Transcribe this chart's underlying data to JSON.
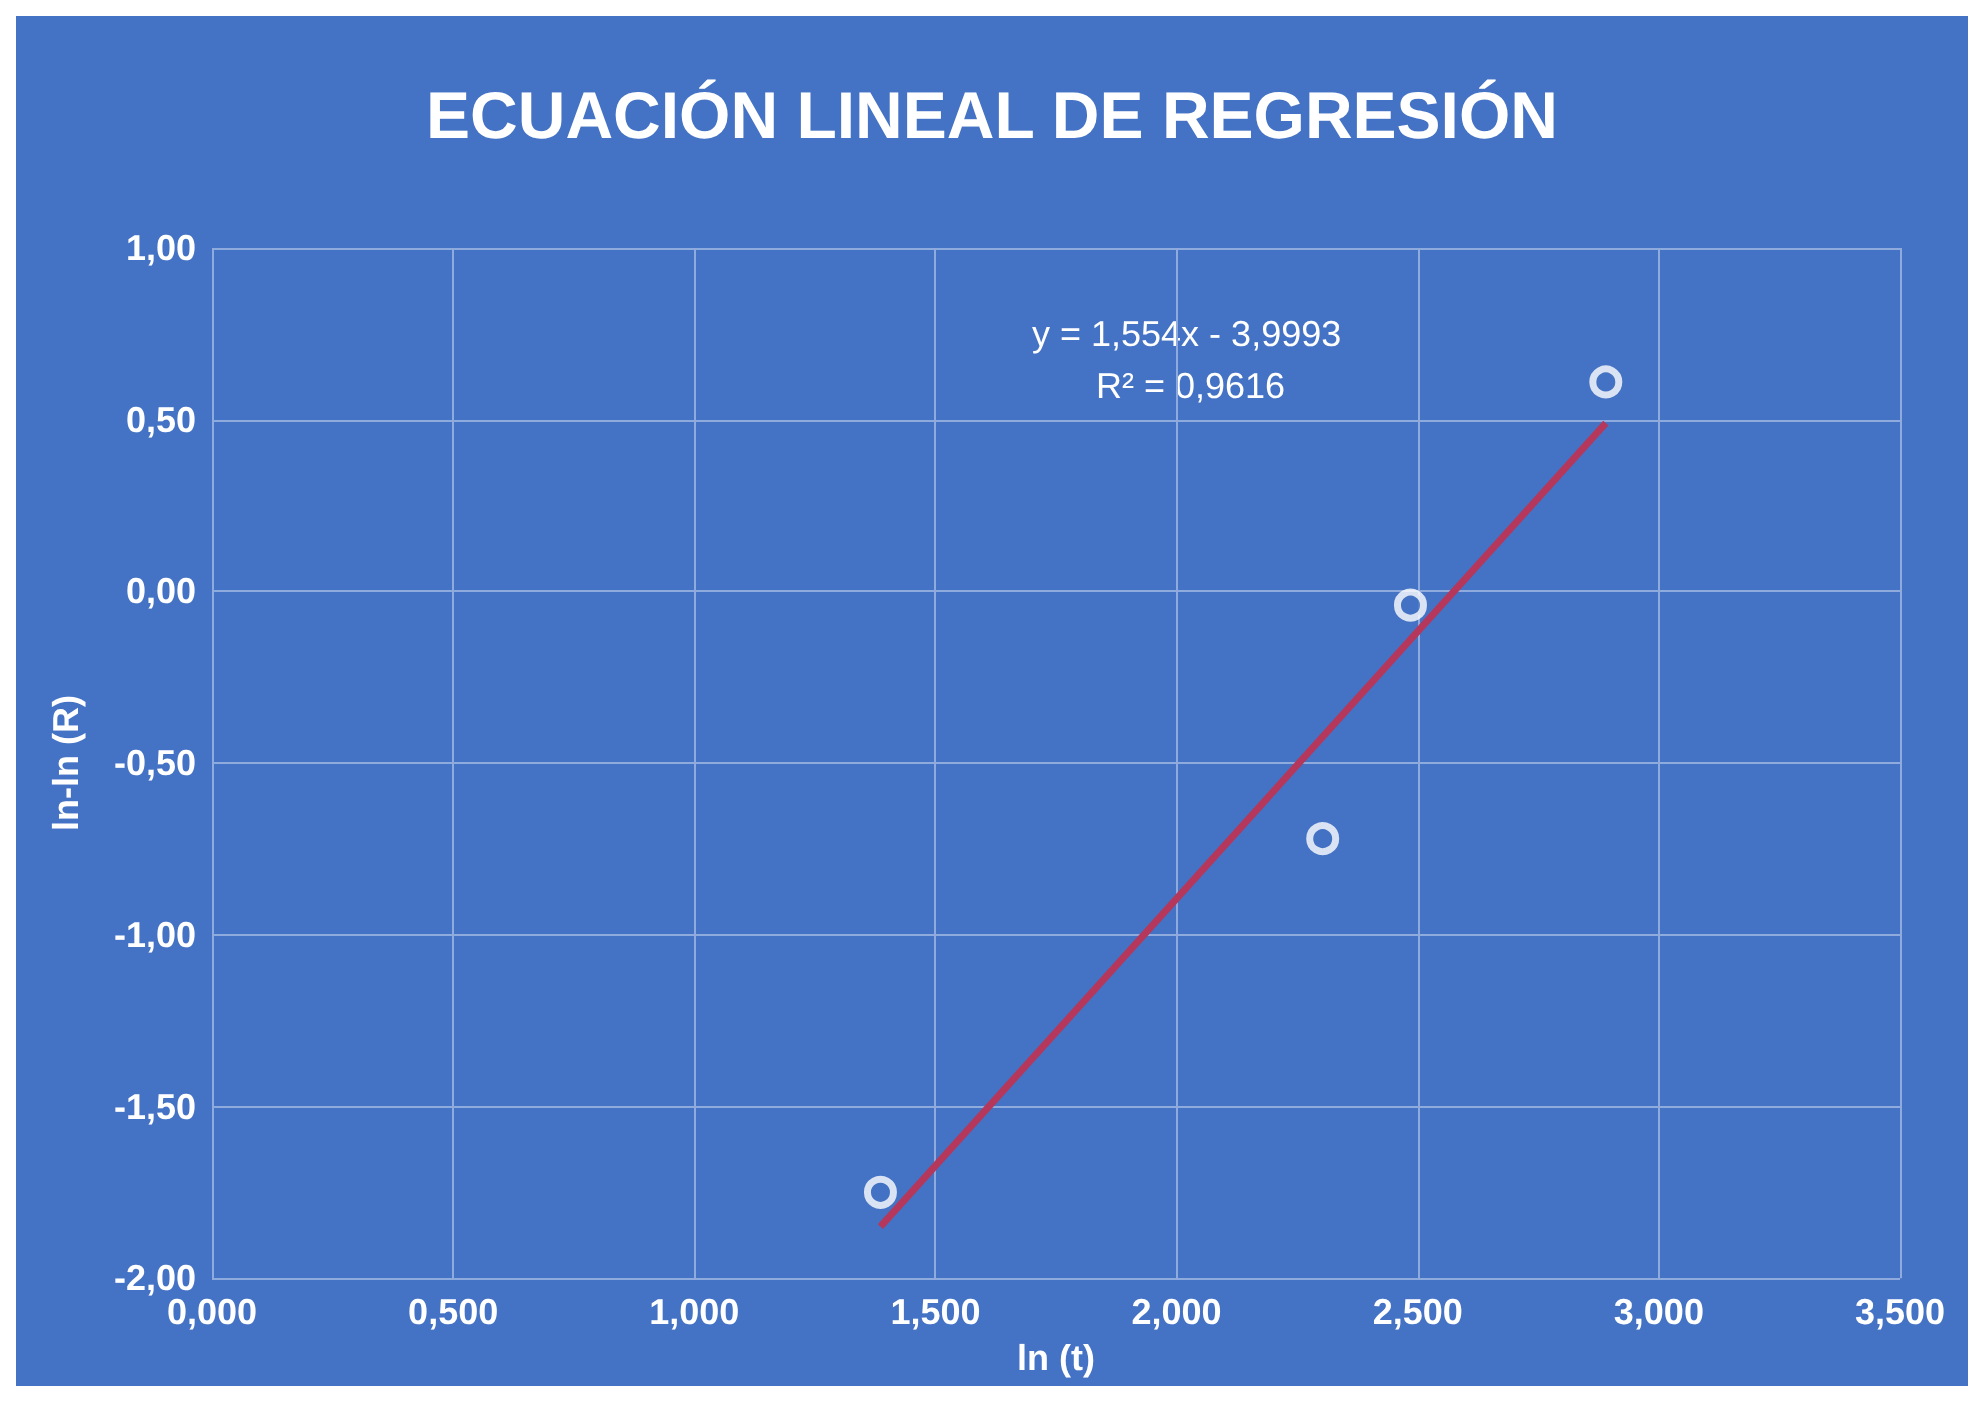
{
  "chart_data": {
    "type": "scatter",
    "title": "ECUACIÓN LINEAL DE REGRESIÓN",
    "xlabel": "ln (t)",
    "ylabel": "ln-ln (R)",
    "series": [
      {
        "type": "scatter",
        "color": "#ffffff",
        "x": [
          1.386,
          2.303,
          2.485,
          2.89
        ],
        "values": [
          -1.75,
          -0.72,
          -0.04,
          0.61
        ],
        "marker": "circle"
      },
      {
        "type": "line",
        "color": "#b5385c",
        "x": [
          1.386,
          2.89
        ],
        "values": [
          -1.85,
          0.49
        ],
        "marker": "none"
      }
    ],
    "annotations": [
      "y = 1,554x - 3,9993",
      "R² = 0,9616"
    ],
    "xlim": [
      0,
      3.5
    ],
    "xticks": [
      {
        "value": 0,
        "label": "0,000"
      },
      {
        "value": 0.5,
        "label": "0,500"
      },
      {
        "value": 1,
        "label": "1,000"
      },
      {
        "value": 1.5,
        "label": "1,500"
      },
      {
        "value": 2,
        "label": "2,000"
      },
      {
        "value": 2.5,
        "label": "2,500"
      },
      {
        "value": 3,
        "label": "3,000"
      },
      {
        "value": 3.5,
        "label": "3,500"
      }
    ],
    "ylim": [
      -2,
      1
    ],
    "yticks": [
      {
        "value": -2,
        "label": "-2,00"
      },
      {
        "value": -1.5,
        "label": "-1,50"
      },
      {
        "value": -1,
        "label": "-1,00"
      },
      {
        "value": -0.5,
        "label": "-0,50"
      },
      {
        "value": 0,
        "label": "0,00"
      },
      {
        "value": 0.5,
        "label": "0,50"
      },
      {
        "value": 1,
        "label": "1,00"
      }
    ],
    "grid": true
  }
}
